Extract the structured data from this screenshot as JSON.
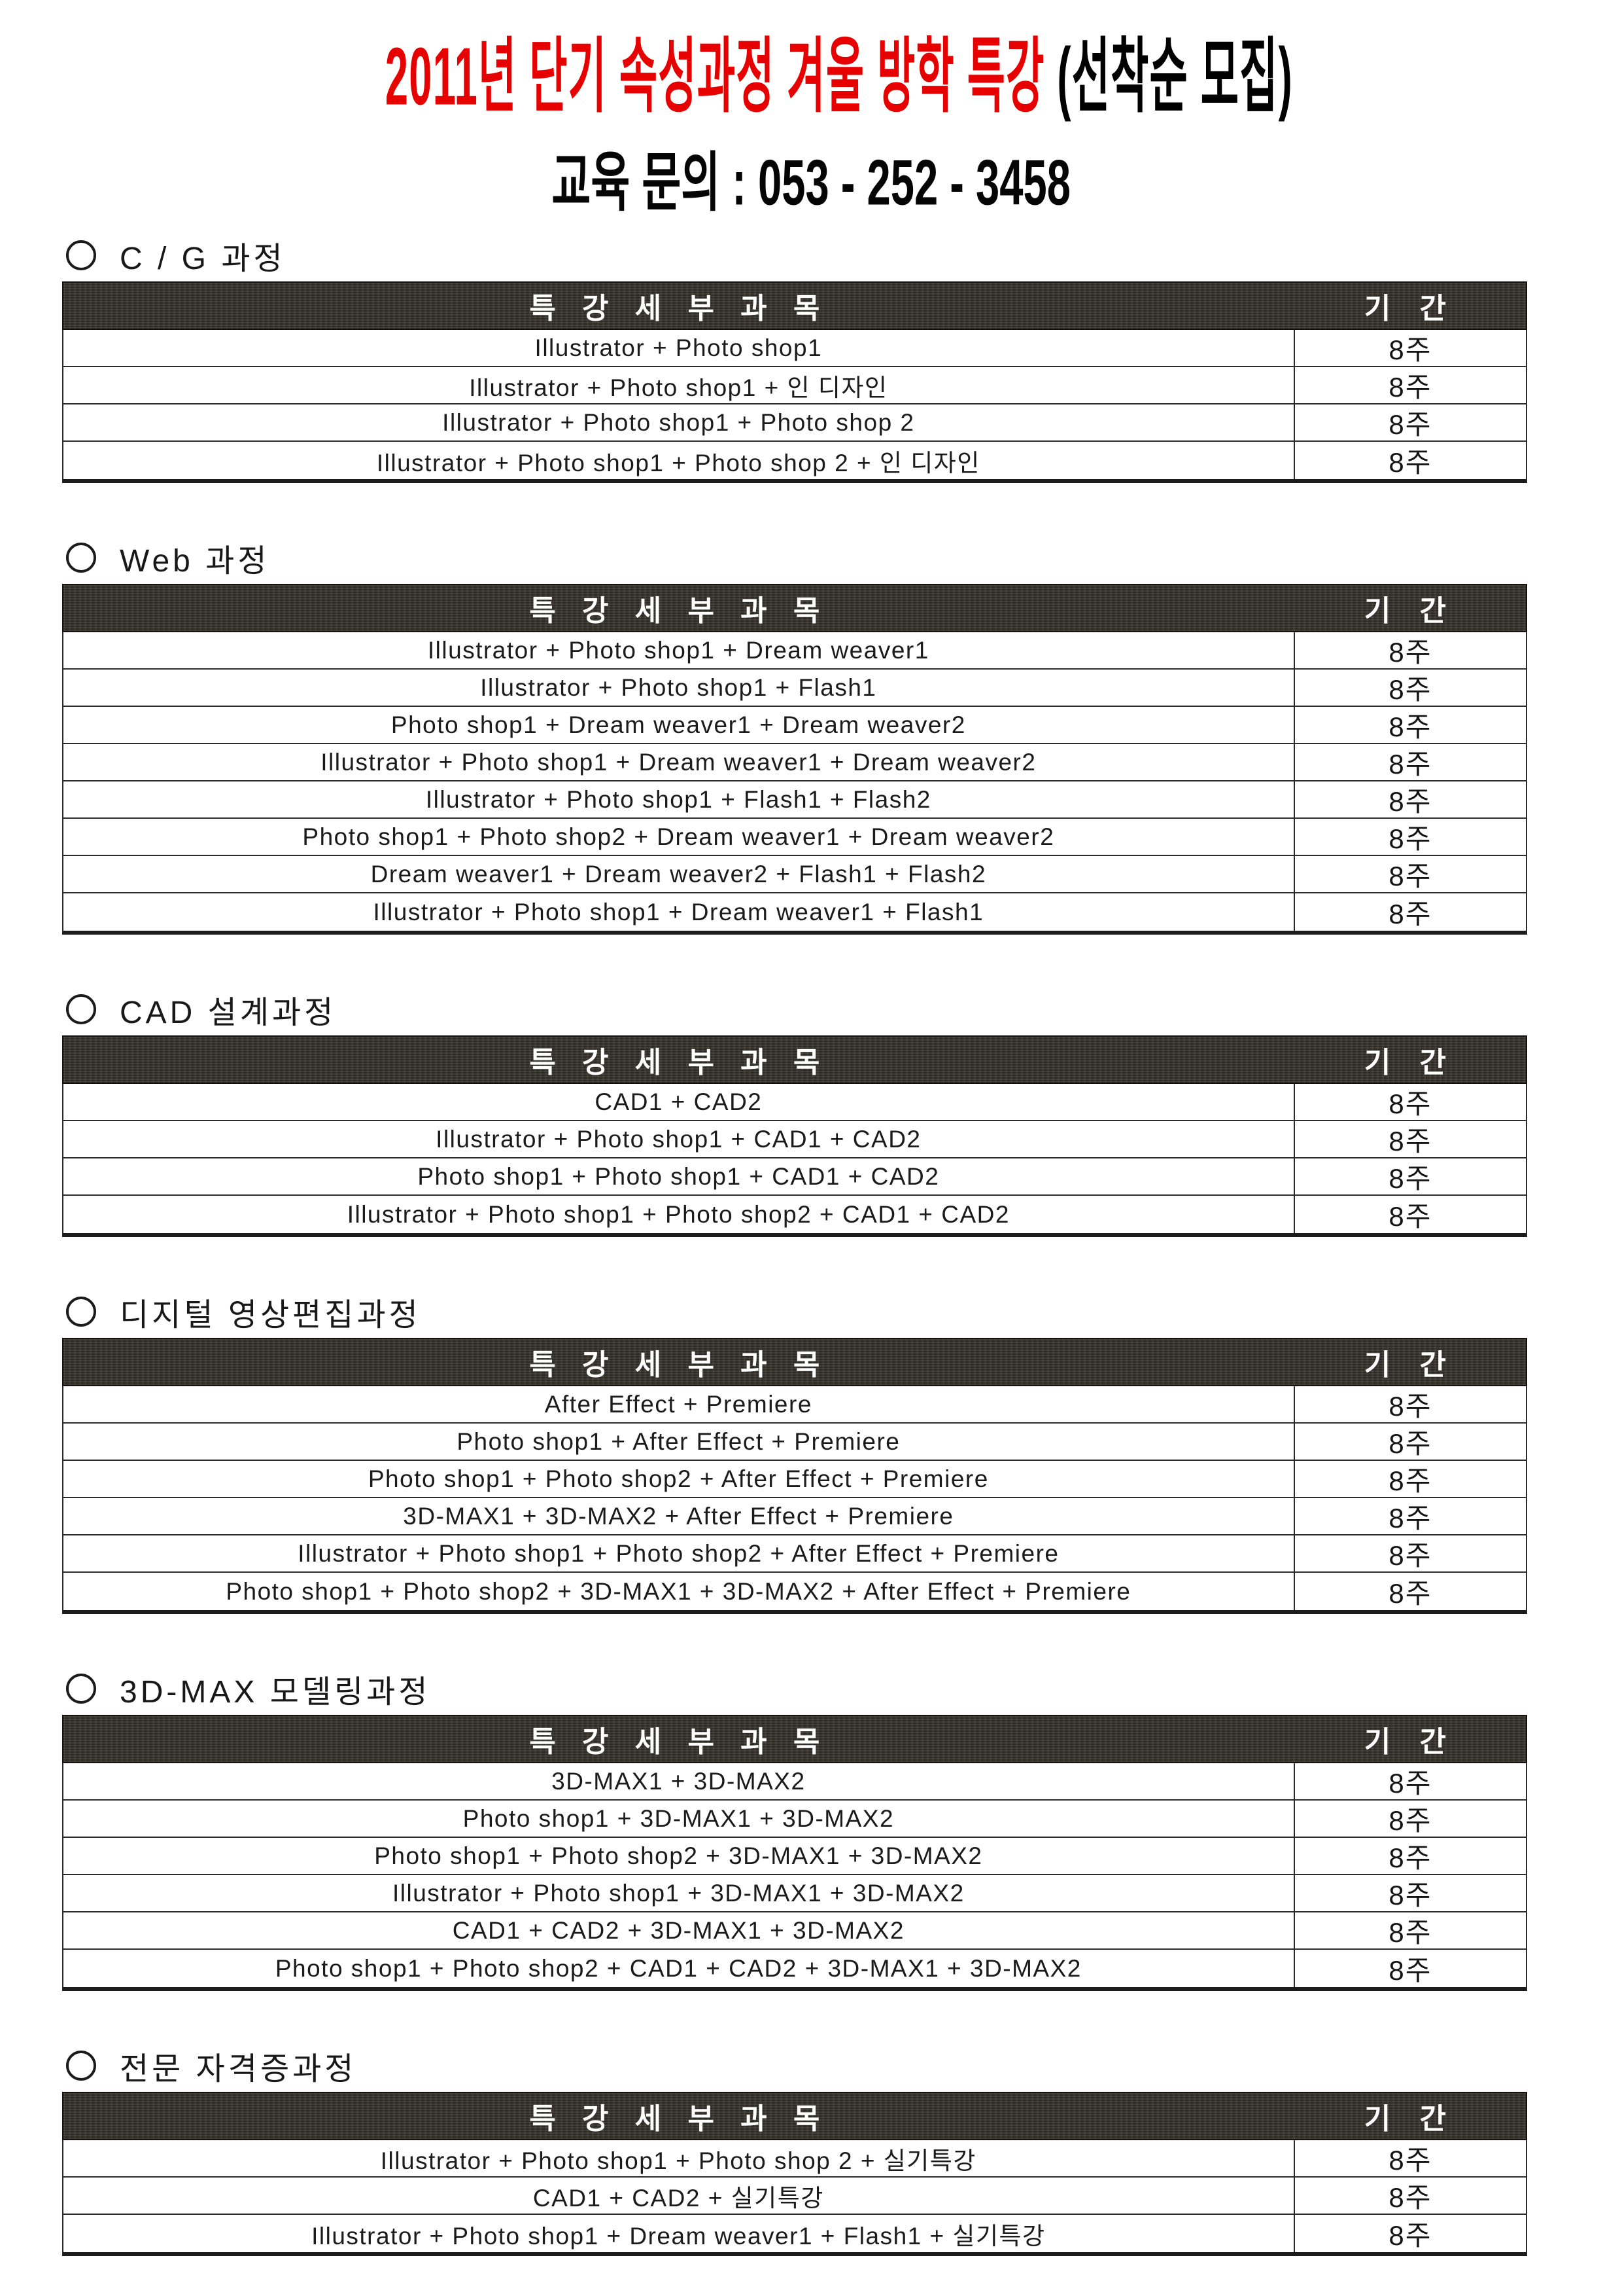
{
  "title": {
    "main": "2011년 단기 속성과정 겨울 방학 특강 ",
    "note": "(선착순 모집)"
  },
  "contact": "교육 문의 : 053 - 252 - 3458",
  "table_header": {
    "subject": "특 강 세 부 과 목",
    "duration": "기 간"
  },
  "colors": {
    "title_red": "#e60000",
    "header_bar": "#34302a",
    "header_text": "#ffffff",
    "body_text": "#1b1b1b"
  },
  "sections": [
    {
      "heading": "C / G 과정",
      "rows": [
        {
          "subject": "Illustrator + Photo shop1",
          "duration": "8주"
        },
        {
          "subject": "Illustrator + Photo shop1 + 인 디자인",
          "duration": "8주"
        },
        {
          "subject": "Illustrator + Photo shop1 + Photo shop 2",
          "duration": "8주"
        },
        {
          "subject": "Illustrator + Photo shop1 + Photo shop 2 + 인 디자인",
          "duration": "8주"
        }
      ]
    },
    {
      "heading": "Web 과정",
      "rows": [
        {
          "subject": "Illustrator + Photo shop1 + Dream weaver1",
          "duration": "8주"
        },
        {
          "subject": "Illustrator + Photo shop1 + Flash1",
          "duration": "8주"
        },
        {
          "subject": "Photo shop1 + Dream weaver1 + Dream weaver2",
          "duration": "8주"
        },
        {
          "subject": "Illustrator + Photo shop1 + Dream weaver1 + Dream weaver2",
          "duration": "8주"
        },
        {
          "subject": "Illustrator + Photo shop1 + Flash1 + Flash2",
          "duration": "8주"
        },
        {
          "subject": "Photo shop1 + Photo shop2 + Dream weaver1 + Dream weaver2",
          "duration": "8주"
        },
        {
          "subject": "Dream weaver1 + Dream weaver2 + Flash1 + Flash2",
          "duration": "8주"
        },
        {
          "subject": "Illustrator + Photo shop1 + Dream weaver1 + Flash1",
          "duration": "8주"
        }
      ]
    },
    {
      "heading": "CAD 설계과정",
      "rows": [
        {
          "subject": "CAD1 + CAD2",
          "duration": "8주"
        },
        {
          "subject": "Illustrator + Photo shop1 + CAD1 + CAD2",
          "duration": "8주"
        },
        {
          "subject": "Photo shop1 + Photo shop1 + CAD1 + CAD2",
          "duration": "8주"
        },
        {
          "subject": "Illustrator + Photo shop1 + Photo shop2 + CAD1 + CAD2",
          "duration": "8주"
        }
      ]
    },
    {
      "heading": "디지털 영상편집과정",
      "rows": [
        {
          "subject": "After Effect + Premiere",
          "duration": "8주"
        },
        {
          "subject": "Photo shop1 + After Effect + Premiere",
          "duration": "8주"
        },
        {
          "subject": "Photo shop1 + Photo shop2 + After Effect + Premiere",
          "duration": "8주"
        },
        {
          "subject": "3D-MAX1 + 3D-MAX2 + After Effect + Premiere",
          "duration": "8주"
        },
        {
          "subject": "Illustrator + Photo shop1 + Photo shop2 + After Effect + Premiere",
          "duration": "8주"
        },
        {
          "subject": "Photo shop1 + Photo shop2 + 3D-MAX1 + 3D-MAX2 + After Effect + Premiere",
          "duration": "8주"
        }
      ]
    },
    {
      "heading": "3D-MAX 모델링과정",
      "rows": [
        {
          "subject": "3D-MAX1 + 3D-MAX2",
          "duration": "8주"
        },
        {
          "subject": "Photo shop1 + 3D-MAX1 + 3D-MAX2",
          "duration": "8주"
        },
        {
          "subject": "Photo shop1 + Photo shop2 + 3D-MAX1 + 3D-MAX2",
          "duration": "8주"
        },
        {
          "subject": "Illustrator + Photo shop1 + 3D-MAX1 + 3D-MAX2",
          "duration": "8주"
        },
        {
          "subject": "CAD1 + CAD2 + 3D-MAX1 + 3D-MAX2",
          "duration": "8주"
        },
        {
          "subject": "Photo shop1 + Photo shop2 + CAD1 + CAD2 + 3D-MAX1 + 3D-MAX2",
          "duration": "8주"
        }
      ]
    },
    {
      "heading": "전문 자격증과정",
      "rows": [
        {
          "subject": "Illustrator + Photo shop1 + Photo shop 2 + 실기특강",
          "duration": "8주"
        },
        {
          "subject": "CAD1 + CAD2 + 실기특강",
          "duration": "8주"
        },
        {
          "subject": "Illustrator + Photo shop1 + Dream weaver1 + Flash1 + 실기특강",
          "duration": "8주"
        }
      ]
    }
  ]
}
